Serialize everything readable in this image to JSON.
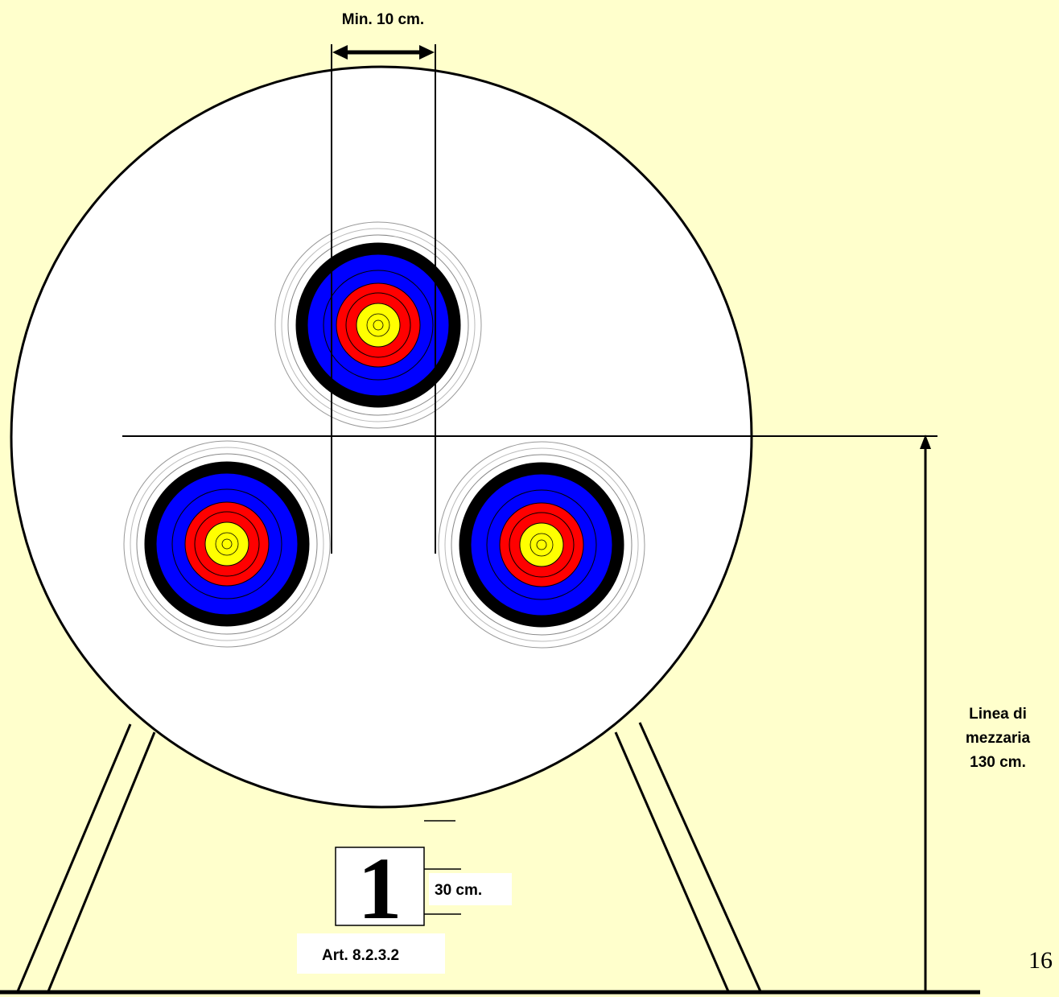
{
  "labels": {
    "top_spacing": "Min. 10 cm.",
    "midline_line1": "Linea di",
    "midline_line2": "mezzaria",
    "midline_height": "130 cm.",
    "card_number": "1",
    "card_height": "30 cm.",
    "article": "Art. 8.2.3.2",
    "page_number": "16"
  }
}
